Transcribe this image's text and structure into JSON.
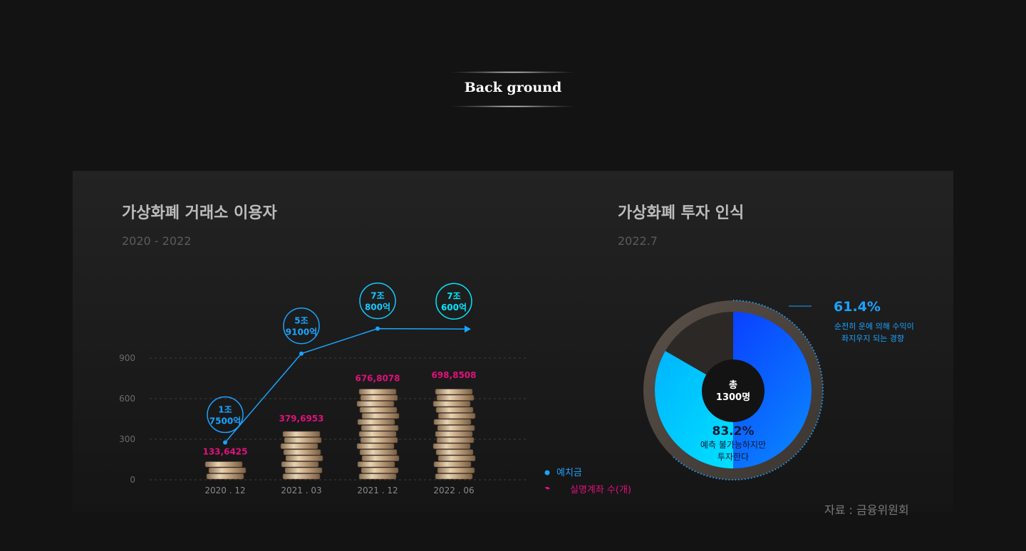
{
  "header": {
    "title": "Back ground"
  },
  "left_chart": {
    "title": "가상화폐 거래소 이용자",
    "subtitle": "2020 - 2022"
  },
  "right_chart": {
    "title": "가상화폐 투자 인식",
    "subtitle": "2022.7"
  },
  "source": "자료 : 금융위원회",
  "chart_data": [
    {
      "type": "bar",
      "title": "가상화폐 거래소 이용자",
      "subtitle": "2020 - 2022",
      "categories": [
        "2020 . 12",
        "2021 . 03",
        "2021 . 12",
        "2022 . 06"
      ],
      "y_ticks": [
        "0",
        "300",
        "600",
        "900"
      ],
      "ylim": [
        0,
        900
      ],
      "series": [
        {
          "name": "실명계좌 수(개)",
          "type": "bar",
          "values": [
            133.6425,
            379.6953,
            676.8078,
            698.8508
          ],
          "labels": [
            "133,6425",
            "379,6953",
            "676,8078",
            "698,8508"
          ],
          "color": "#e0107a"
        },
        {
          "name": "예치금",
          "type": "line",
          "labels": [
            [
              "1조",
              "7500억"
            ],
            [
              "5조",
              "9100억"
            ],
            [
              "7조",
              "800억"
            ],
            [
              "7조",
              "600억"
            ]
          ],
          "values": [
            1.75,
            5.91,
            7.08,
            7.06
          ],
          "unit": "조",
          "color": "#1aa3ff"
        }
      ],
      "legend": "bottom-right"
    },
    {
      "type": "pie",
      "title": "가상화폐 투자 인식",
      "subtitle": "2022.7",
      "center_label": [
        "총",
        "1300명"
      ],
      "slices": [
        {
          "value": 83.2,
          "label": "83.2%",
          "text": [
            "예측 불가능하지만",
            "투자한다"
          ],
          "color": "#00c8ff"
        },
        {
          "value": 61.4,
          "label": "61.4%",
          "text": [
            "순전히 운에 의해 수익이",
            "좌지우지 되는 경향"
          ],
          "color": "#1a55ff"
        }
      ]
    }
  ]
}
